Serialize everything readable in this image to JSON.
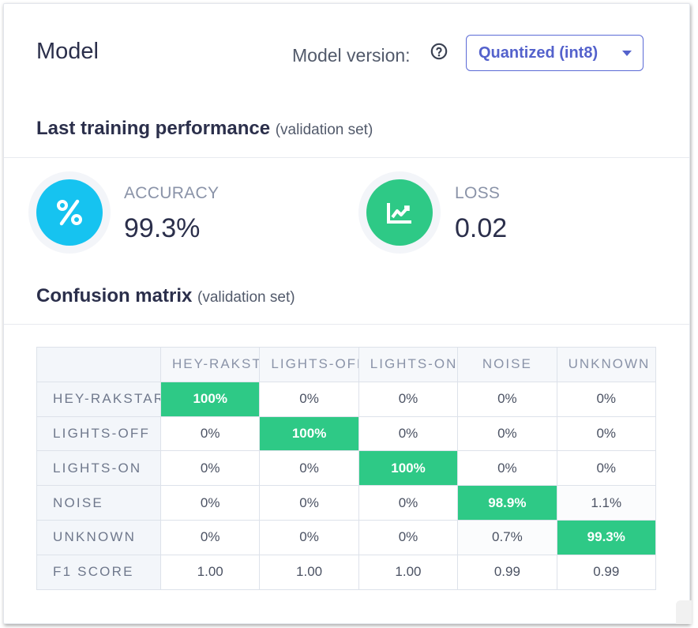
{
  "header": {
    "title": "Model",
    "version_label": "Model version:",
    "help_icon": "question-circle-icon",
    "version_selected": "Quantized (int8)"
  },
  "training": {
    "title": "Last training performance",
    "subtitle": "(validation set)",
    "accuracy_label": "ACCURACY",
    "accuracy_value": "99.3%",
    "accuracy_icon": "percent-icon",
    "accuracy_color": "#16c3f0",
    "loss_label": "LOSS",
    "loss_value": "0.02",
    "loss_icon": "chart-line-icon",
    "loss_color": "#2ec986"
  },
  "confusion": {
    "title": "Confusion matrix",
    "subtitle": "(validation set)",
    "columns": [
      "HEY-RAKSTAR",
      "LIGHTS-OFF",
      "LIGHTS-ON",
      "NOISE",
      "UNKNOWN"
    ],
    "rows": [
      {
        "label": "HEY-RAKSTAR",
        "cells": [
          "100%",
          "0%",
          "0%",
          "0%",
          "0%"
        ]
      },
      {
        "label": "LIGHTS-OFF",
        "cells": [
          "0%",
          "100%",
          "0%",
          "0%",
          "0%"
        ]
      },
      {
        "label": "LIGHTS-ON",
        "cells": [
          "0%",
          "0%",
          "100%",
          "0%",
          "0%"
        ]
      },
      {
        "label": "NOISE",
        "cells": [
          "0%",
          "0%",
          "0%",
          "98.9%",
          "1.1%"
        ]
      },
      {
        "label": "UNKNOWN",
        "cells": [
          "0%",
          "0%",
          "0%",
          "0.7%",
          "99.3%"
        ]
      },
      {
        "label": "F1 SCORE",
        "cells": [
          "1.00",
          "1.00",
          "1.00",
          "0.99",
          "0.99"
        ]
      }
    ],
    "highlight_color": "#2ec986"
  }
}
